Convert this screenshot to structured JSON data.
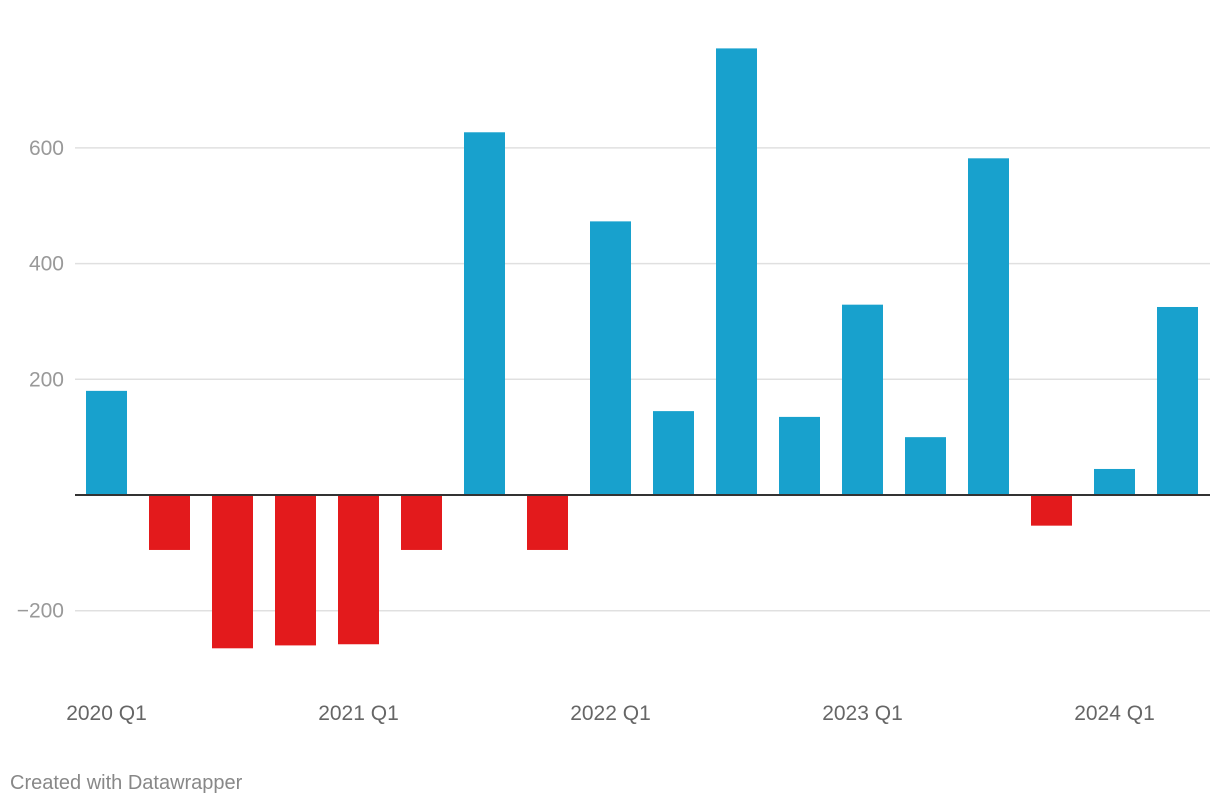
{
  "chart_data": {
    "type": "bar",
    "categories": [
      "2020 Q1",
      "2020 Q2",
      "2020 Q3",
      "2020 Q4",
      "2021 Q1",
      "2021 Q2",
      "2021 Q3",
      "2021 Q4",
      "2022 Q1",
      "2022 Q2",
      "2022 Q3",
      "2022 Q4",
      "2023 Q1",
      "2023 Q2",
      "2023 Q3",
      "2023 Q4",
      "2024 Q1",
      "2024 Q2"
    ],
    "values": [
      180,
      -95,
      -265,
      -260,
      -258,
      -95,
      627,
      -95,
      473,
      145,
      772,
      135,
      329,
      100,
      582,
      -53,
      45,
      325
    ],
    "x_tick_labels": [
      "2020 Q1",
      "2021 Q1",
      "2022 Q1",
      "2023 Q1",
      "2024 Q1"
    ],
    "y_ticks": [
      600,
      400,
      200,
      -200
    ],
    "y_tick_labels": [
      "600",
      "400",
      "200",
      "−200"
    ],
    "ylim": [
      -310,
      800
    ],
    "grid": true,
    "colors": {
      "positive": "#18a1cd",
      "negative": "#e31a1c",
      "grid": "#e0e0e0",
      "baseline": "#333333"
    }
  },
  "footer": {
    "credit": "Created with Datawrapper"
  }
}
